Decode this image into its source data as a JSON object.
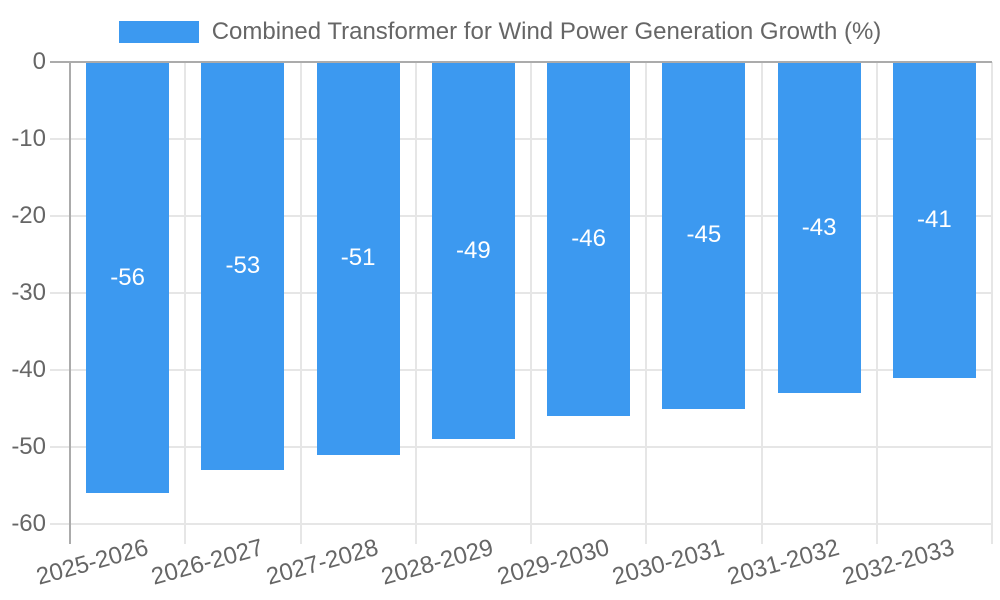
{
  "chart_data": {
    "type": "bar",
    "title": "Combined Transformer for Wind Power Generation Growth (%)",
    "categories": [
      "2025-2026",
      "2026-2027",
      "2027-2028",
      "2028-2029",
      "2029-2030",
      "2030-2031",
      "2031-2032",
      "2032-2033"
    ],
    "series": [
      {
        "name": "Combined Transformer for Wind Power Generation Growth (%)",
        "values": [
          -56,
          -53,
          -51,
          -49,
          -46,
          -45,
          -43,
          -41
        ]
      }
    ],
    "bar_labels": [
      "-56",
      "-53",
      "-51",
      "-49",
      "-46",
      "-45",
      "-43",
      "-41"
    ],
    "xlabel": "",
    "ylabel": "",
    "ylim": [
      -60,
      0
    ],
    "y_ticks": [
      0,
      -10,
      -20,
      -30,
      -40,
      -50,
      -60
    ],
    "grid": true,
    "legend_position": "top",
    "colors": {
      "bar": "#3C99F0",
      "grid": "#E6E6E6",
      "axis": "#ABABAB",
      "tick_text": "#666666",
      "legend_text": "#666666",
      "bar_label": "#FFFFFF",
      "background": "#FFFFFF"
    }
  }
}
